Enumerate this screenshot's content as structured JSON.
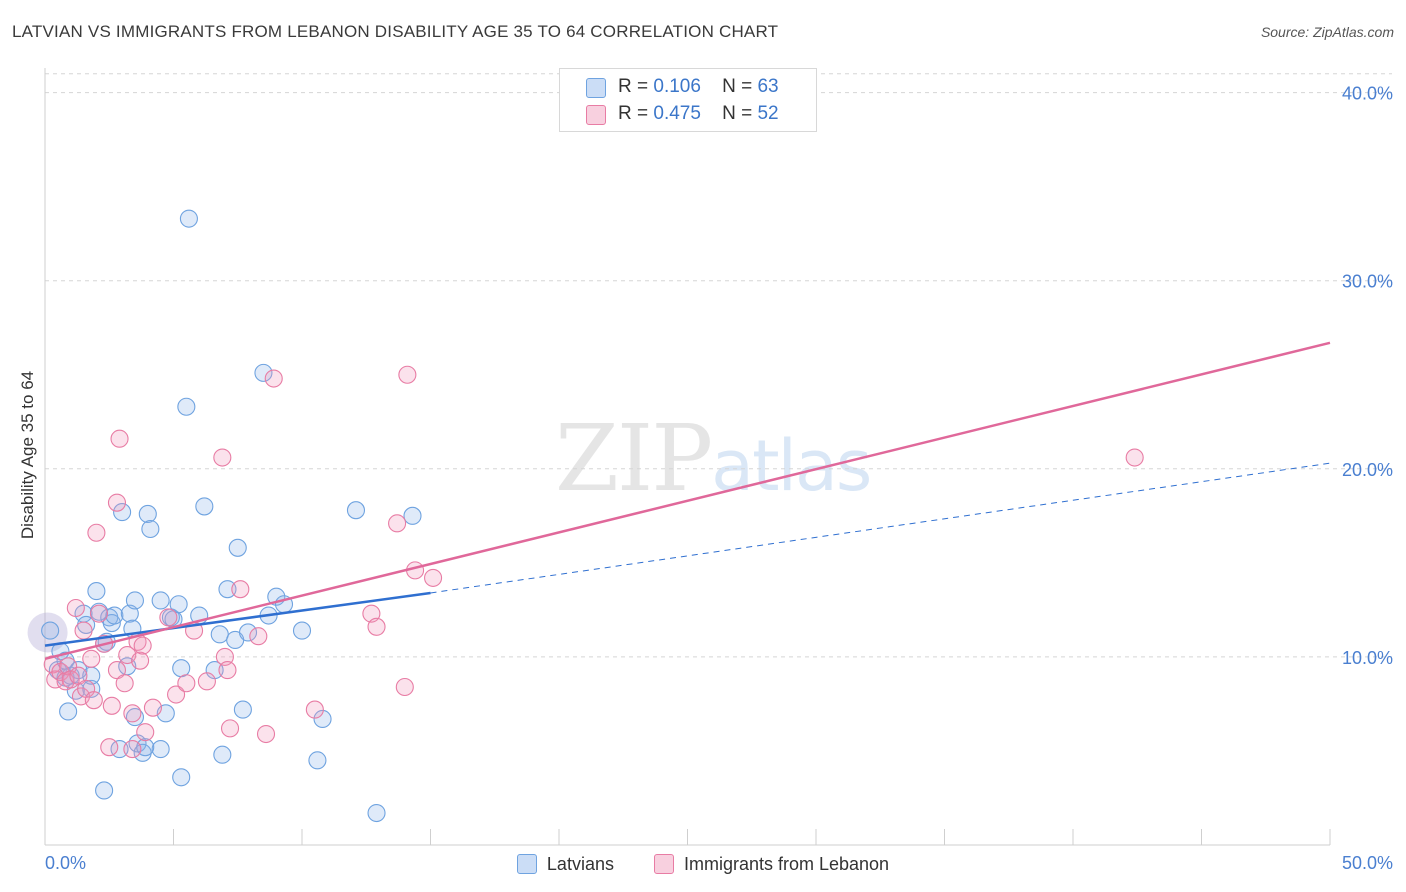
{
  "title": "LATVIAN VS IMMIGRANTS FROM LEBANON DISABILITY AGE 35 TO 64 CORRELATION CHART",
  "source": "Source: ZipAtlas.com",
  "watermark": {
    "zip": "ZIP",
    "atlas": "atlas"
  },
  "colors": {
    "blue": "#6fa3e0",
    "blue_fill": "rgba(140,180,235,0.28)",
    "blue_line": "#2f6fd0",
    "pink": "#e87ca4",
    "pink_fill": "rgba(240,150,185,0.28)",
    "pink_line": "#e0689a",
    "grid": "#d5d5d5",
    "tick_text": "#4a7fd0"
  },
  "legend_top": {
    "rows": [
      {
        "r_label": "R =",
        "r_value": "0.106",
        "n_label": "N =",
        "n_value": "63"
      },
      {
        "r_label": "R =",
        "r_value": "0.475",
        "n_label": "N =",
        "n_value": "52"
      }
    ]
  },
  "legend_bottom": {
    "series1": "Latvians",
    "series2": "Immigrants from Lebanon"
  },
  "chart_data": {
    "type": "scatter",
    "title": "LATVIAN VS IMMIGRANTS FROM LEBANON DISABILITY AGE 35 TO 64 CORRELATION CHART",
    "xlabel": "",
    "ylabel": "Disability Age 35 to 64",
    "xlim": [
      0,
      50
    ],
    "ylim": [
      0,
      42
    ],
    "x_tick_labels": [
      "0.0%",
      "50.0%"
    ],
    "y_ticks": [
      10,
      20,
      30,
      40
    ],
    "y_tick_labels": [
      "10.0%",
      "20.0%",
      "30.0%",
      "40.0%"
    ],
    "grid": true,
    "legend_position": "top-center",
    "series": [
      {
        "name": "Latvians",
        "R": 0.106,
        "N": 63,
        "trend": {
          "x0": 0,
          "y0": 10.6,
          "x1": 15,
          "y1": 13.4,
          "dash_to_x": 50,
          "dash_to_y": 20.3
        },
        "points": [
          [
            0.2,
            11.4
          ],
          [
            0.5,
            9.3
          ],
          [
            0.6,
            10.3
          ],
          [
            0.8,
            9.8
          ],
          [
            0.8,
            8.9
          ],
          [
            1.0,
            9.0
          ],
          [
            1.2,
            8.2
          ],
          [
            0.9,
            7.1
          ],
          [
            1.5,
            12.3
          ],
          [
            1.6,
            11.7
          ],
          [
            1.8,
            8.3
          ],
          [
            1.8,
            9.0
          ],
          [
            2.0,
            13.5
          ],
          [
            2.1,
            12.4
          ],
          [
            2.3,
            10.7
          ],
          [
            2.4,
            10.8
          ],
          [
            2.5,
            12.1
          ],
          [
            2.6,
            11.8
          ],
          [
            2.7,
            12.2
          ],
          [
            2.3,
            2.9
          ],
          [
            3.0,
            17.7
          ],
          [
            3.2,
            9.5
          ],
          [
            3.3,
            12.3
          ],
          [
            3.4,
            11.5
          ],
          [
            3.5,
            13.0
          ],
          [
            3.5,
            6.8
          ],
          [
            3.6,
            5.4
          ],
          [
            3.8,
            4.9
          ],
          [
            4.0,
            17.6
          ],
          [
            4.1,
            16.8
          ],
          [
            4.5,
            13.0
          ],
          [
            4.5,
            5.1
          ],
          [
            4.7,
            7.0
          ],
          [
            4.9,
            12.1
          ],
          [
            5.0,
            12.0
          ],
          [
            5.2,
            12.8
          ],
          [
            5.3,
            9.4
          ],
          [
            5.3,
            3.6
          ],
          [
            5.5,
            23.3
          ],
          [
            5.6,
            33.3
          ],
          [
            6.0,
            12.2
          ],
          [
            6.2,
            18.0
          ],
          [
            6.6,
            9.3
          ],
          [
            6.8,
            11.2
          ],
          [
            6.9,
            4.8
          ],
          [
            7.1,
            13.6
          ],
          [
            7.4,
            10.9
          ],
          [
            7.5,
            15.8
          ],
          [
            7.7,
            7.2
          ],
          [
            7.9,
            11.3
          ],
          [
            8.5,
            25.1
          ],
          [
            8.7,
            12.2
          ],
          [
            9.0,
            13.2
          ],
          [
            9.3,
            12.8
          ],
          [
            10.0,
            11.4
          ],
          [
            10.6,
            4.5
          ],
          [
            10.8,
            6.7
          ],
          [
            12.1,
            17.8
          ],
          [
            12.9,
            1.7
          ],
          [
            14.3,
            17.5
          ],
          [
            1.3,
            9.3
          ],
          [
            2.9,
            5.1
          ],
          [
            3.9,
            5.2
          ]
        ]
      },
      {
        "name": "Immigrants from Lebanon",
        "R": 0.475,
        "N": 52,
        "trend": {
          "x0": 0,
          "y0": 9.9,
          "x1": 50,
          "y1": 26.7
        },
        "points": [
          [
            0.3,
            9.6
          ],
          [
            0.4,
            8.8
          ],
          [
            0.6,
            9.2
          ],
          [
            0.8,
            8.7
          ],
          [
            0.9,
            9.5
          ],
          [
            1.0,
            8.8
          ],
          [
            1.2,
            12.6
          ],
          [
            1.3,
            9.0
          ],
          [
            1.4,
            7.9
          ],
          [
            1.5,
            11.4
          ],
          [
            1.6,
            8.3
          ],
          [
            1.8,
            9.9
          ],
          [
            1.9,
            7.7
          ],
          [
            2.0,
            16.6
          ],
          [
            2.1,
            12.3
          ],
          [
            2.3,
            10.7
          ],
          [
            2.5,
            5.2
          ],
          [
            2.6,
            7.4
          ],
          [
            2.8,
            18.2
          ],
          [
            2.9,
            21.6
          ],
          [
            2.8,
            9.3
          ],
          [
            3.1,
            8.6
          ],
          [
            3.2,
            10.1
          ],
          [
            3.4,
            7.0
          ],
          [
            3.4,
            5.1
          ],
          [
            3.6,
            10.8
          ],
          [
            3.7,
            9.8
          ],
          [
            3.9,
            6.0
          ],
          [
            3.8,
            10.6
          ],
          [
            4.2,
            7.3
          ],
          [
            4.8,
            12.1
          ],
          [
            5.1,
            8.0
          ],
          [
            5.5,
            8.6
          ],
          [
            5.8,
            11.4
          ],
          [
            6.3,
            8.7
          ],
          [
            6.9,
            20.6
          ],
          [
            7.0,
            10.0
          ],
          [
            7.1,
            9.3
          ],
          [
            7.2,
            6.2
          ],
          [
            7.6,
            13.6
          ],
          [
            8.3,
            11.1
          ],
          [
            8.6,
            5.9
          ],
          [
            8.9,
            24.8
          ],
          [
            10.5,
            7.2
          ],
          [
            12.7,
            12.3
          ],
          [
            12.9,
            11.6
          ],
          [
            13.7,
            17.1
          ],
          [
            14.0,
            8.4
          ],
          [
            14.1,
            25.0
          ],
          [
            14.4,
            14.6
          ],
          [
            15.1,
            14.2
          ],
          [
            42.4,
            20.6
          ]
        ]
      }
    ]
  }
}
